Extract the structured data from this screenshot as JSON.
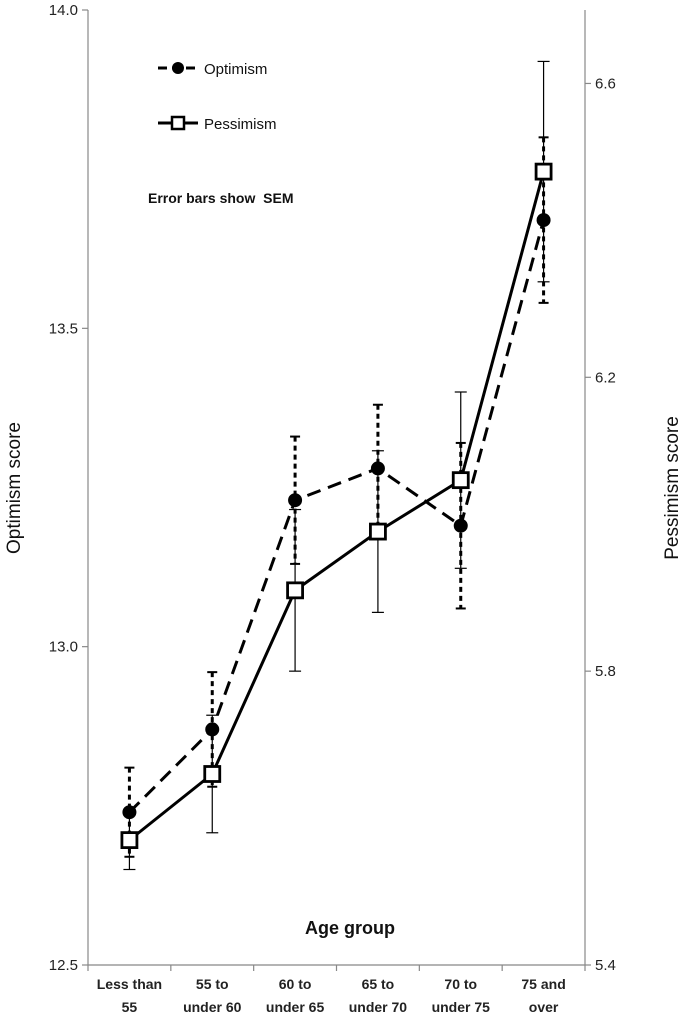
{
  "chart_data": {
    "type": "line",
    "xlabel": "Age group",
    "categories": [
      [
        "Less than",
        "55"
      ],
      [
        "55 to",
        "under 60"
      ],
      [
        "60 to",
        "under 65"
      ],
      [
        "65 to",
        "under 70"
      ],
      [
        "70 to",
        "under 75"
      ],
      [
        "75 and",
        "over"
      ]
    ],
    "y_left": {
      "label": "Optimism score",
      "lim": [
        12.5,
        14.0
      ],
      "ticks": [
        "12.5",
        "13.0",
        "13.5",
        "14.0"
      ]
    },
    "y_right": {
      "label": "Pessimism score",
      "lim": [
        5.4,
        6.7
      ],
      "ticks": [
        "5.4",
        "5.8",
        "6.2",
        "6.6"
      ]
    },
    "series": [
      {
        "name": "Optimism",
        "axis": "left",
        "style": "dashed",
        "marker": "filled-circle",
        "values": [
          12.74,
          12.87,
          13.23,
          13.28,
          13.19,
          13.67
        ],
        "sem": [
          0.07,
          0.09,
          0.1,
          0.1,
          0.13,
          0.13
        ]
      },
      {
        "name": "Pessimism",
        "axis": "right",
        "style": "solid",
        "marker": "open-square",
        "values": [
          5.57,
          5.66,
          5.91,
          5.99,
          6.06,
          6.48
        ],
        "sem": [
          0.04,
          0.08,
          0.11,
          0.11,
          0.12,
          0.15
        ]
      }
    ],
    "annotation": "Error bars show  SEM",
    "legend_position": "top-left",
    "grid": false,
    "colors": {
      "lines": "#000000",
      "axes": "#888888",
      "background": "#ffffff"
    }
  }
}
